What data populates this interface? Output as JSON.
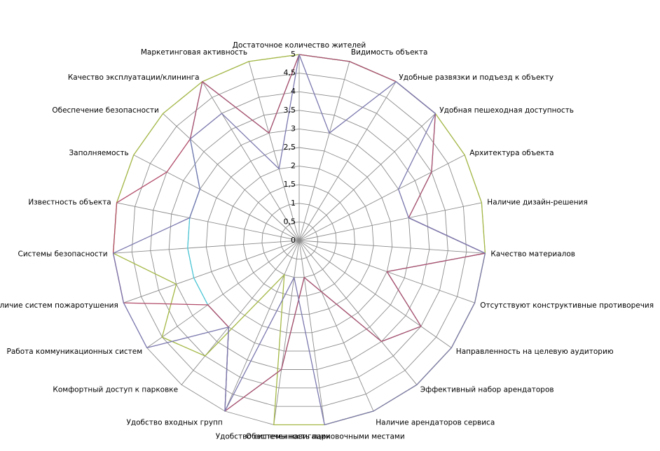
{
  "chart_data": {
    "type": "radar",
    "r_ticks": [
      "0",
      "0,5",
      "1",
      "1,5",
      "2",
      "2,5",
      "3",
      "3,5",
      "4",
      "4,5",
      "5"
    ],
    "rlim": [
      0,
      5
    ],
    "grid": true,
    "legend": "none",
    "categories": [
      "Достаточное  количество жителей",
      "Видимость объекта",
      "Удобные развязки и подъезд к объекту",
      "Удобная пешеходная доступность",
      "Архитектура объекта",
      "Наличие дизайн-решения",
      "Качество материалов",
      "Отсутствуют конструктивные противоречия",
      "Направленность на целевую аудиторию",
      "Эффективный набор арендаторов",
      "Наличие арендаторов сервиса",
      "Обеспеченность парковочными местами",
      "Удобство системы навигации",
      "Удобство входных групп",
      "Комфортный  доступ к парковке",
      "Работа коммуникационных  систем",
      "Наличие систем пожаротушения",
      "Системы  безопасности",
      "Известность объекта",
      "Заполняемость",
      "Обеспечение  безопасности",
      "Качество эксплуатации/клининга",
      "Маркетинговая активность"
    ],
    "series": [
      {
        "color": "#a3b845",
        "values": [
          5,
          5,
          5,
          5,
          5,
          5,
          5,
          5,
          5,
          5,
          5,
          5,
          5,
          1,
          4,
          4.5,
          3.5,
          5,
          5,
          5,
          5,
          5,
          5
        ]
      },
      {
        "color": "#4bc6d6",
        "values": [
          5,
          5,
          5,
          5,
          4,
          3,
          5,
          2.5,
          4,
          3.5,
          1.5,
          1,
          3.5,
          5,
          3,
          3,
          3,
          3,
          3,
          3,
          4,
          5,
          3
        ]
      },
      {
        "color": "#b24c6a",
        "values": [
          5,
          5,
          5,
          5,
          4,
          3,
          5,
          2.5,
          4,
          3.5,
          1.5,
          1,
          3.5,
          5,
          3,
          3,
          5,
          5,
          5,
          4,
          4,
          5,
          3
        ]
      },
      {
        "color": "#7b78ae",
        "values": [
          5,
          3,
          5,
          5,
          3,
          3,
          5,
          5,
          5,
          5,
          5,
          5,
          1,
          5,
          3,
          5,
          5,
          5,
          3,
          3,
          4,
          4,
          2
        ]
      }
    ]
  }
}
